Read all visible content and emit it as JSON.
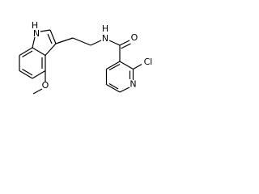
{
  "atoms": {
    "indole_h": "H",
    "indole_n": "N",
    "amide_h": "H",
    "amide_n": "N",
    "carbonyl_o": "O",
    "chlorine": "Cl",
    "pyridine_n": "N",
    "methoxy_o": "O"
  }
}
